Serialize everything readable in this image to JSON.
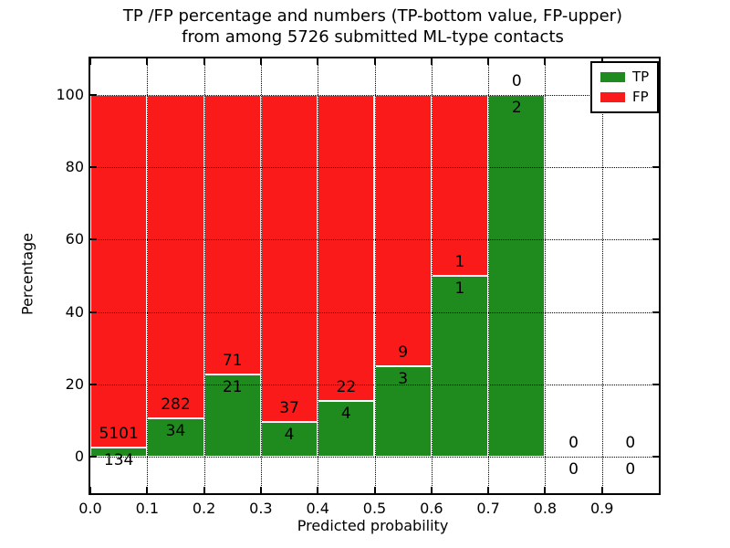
{
  "title": {
    "line1": "TP /FP percentage and numbers (TP-bottom value, FP-upper)",
    "line2": "from among 5726 submitted ML-type contacts"
  },
  "chart_data": {
    "type": "bar",
    "stacked": true,
    "normalized_to_percent": true,
    "bin_width": 0.1,
    "bin_starts": [
      0.0,
      0.1,
      0.2,
      0.3,
      0.4,
      0.5,
      0.6,
      0.7,
      0.8,
      0.9
    ],
    "series": [
      {
        "name": "TP",
        "color": "#1f8b1f",
        "values": [
          134,
          34,
          21,
          4,
          4,
          3,
          1,
          2,
          0,
          0
        ]
      },
      {
        "name": "FP",
        "color": "#fb1a1a",
        "values": [
          5101,
          282,
          71,
          37,
          22,
          9,
          1,
          0,
          0,
          0
        ]
      }
    ],
    "total_contacts": 5726,
    "annotation_rule": "FP count above TP/(TP+FP) boundary, TP count below",
    "xlabel": "Predicted probability",
    "ylabel": "Percentage",
    "xlim": [
      0.0,
      1.0
    ],
    "ylim": [
      -10,
      110
    ],
    "yticks": [
      0,
      20,
      40,
      60,
      80,
      100
    ],
    "ytick_labels": [
      "0",
      "20",
      "40",
      "60",
      "80",
      "100"
    ],
    "xtick_labels": [
      "0.0",
      "0.1",
      "0.2",
      "0.3",
      "0.4",
      "0.5",
      "0.6",
      "0.7",
      "0.8",
      "0.9"
    ],
    "grid": true,
    "grid_style": "dotted",
    "grid_color": "#000000",
    "bar_edge_color": "#ffffff",
    "legend": {
      "position": "upper right",
      "entries": [
        "TP",
        "FP"
      ]
    }
  }
}
